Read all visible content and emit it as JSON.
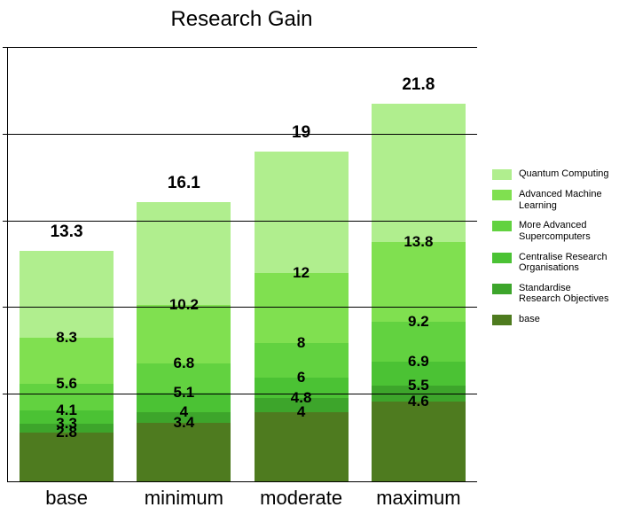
{
  "chart": {
    "type": "stacked-bar",
    "title": "Research Gain",
    "title_fontsize": 24,
    "background_color": "#ffffff",
    "grid_color": "#000000",
    "axis_color": "#000000",
    "ylim": [
      0,
      25
    ],
    "gridlines_y": [
      5,
      10,
      15,
      20,
      25
    ],
    "category_fontsize": 22,
    "segment_label_fontsize": 17,
    "total_label_fontsize": 19,
    "legend_fontsize": 11,
    "categories": [
      "base",
      "minimum",
      "moderate",
      "maximum"
    ],
    "series": [
      {
        "name": "Quantum Computing",
        "color": "#b0ee8e"
      },
      {
        "name": "Advanced Machine Learning",
        "color": "#80e050"
      },
      {
        "name": "More Advanced Supercomputers",
        "color": "#62d240"
      },
      {
        "name": "Centralise Research Organisations",
        "color": "#4bc234"
      },
      {
        "name": "Standardise Research Objectives",
        "color": "#3da52b"
      },
      {
        "name": "base",
        "color": "#4e7b1f"
      }
    ],
    "bars": [
      {
        "category": "base",
        "total": 13.3,
        "total_label": "13.3",
        "segments_top_to_bottom": [
          {
            "top": 13.3,
            "label": "",
            "color": "#b0ee8e"
          },
          {
            "top": 8.3,
            "label": "8.3",
            "color": "#80e050"
          },
          {
            "top": 5.6,
            "label": "5.6",
            "color": "#62d240"
          },
          {
            "top": 4.1,
            "label": "4.1",
            "color": "#4bc234"
          },
          {
            "top": 3.3,
            "label": "3.3",
            "color": "#3da52b"
          },
          {
            "top": 2.8,
            "label": "2.8",
            "color": "#4e7b1f"
          }
        ]
      },
      {
        "category": "minimum",
        "total": 16.1,
        "total_label": "16.1",
        "segments_top_to_bottom": [
          {
            "top": 16.1,
            "label": "",
            "color": "#b0ee8e"
          },
          {
            "top": 10.2,
            "label": "10.2",
            "color": "#80e050"
          },
          {
            "top": 6.8,
            "label": "6.8",
            "color": "#62d240"
          },
          {
            "top": 5.1,
            "label": "5.1",
            "color": "#4bc234"
          },
          {
            "top": 4.0,
            "label": "4",
            "color": "#3da52b"
          },
          {
            "top": 3.4,
            "label": "3.4",
            "color": "#4e7b1f"
          }
        ]
      },
      {
        "category": "moderate",
        "total": 19,
        "total_label": "19",
        "segments_top_to_bottom": [
          {
            "top": 19,
            "label": "",
            "color": "#b0ee8e"
          },
          {
            "top": 12,
            "label": "12",
            "color": "#80e050"
          },
          {
            "top": 8,
            "label": "8",
            "color": "#62d240"
          },
          {
            "top": 6,
            "label": "6",
            "color": "#4bc234"
          },
          {
            "top": 4.8,
            "label": "4.8",
            "color": "#3da52b"
          },
          {
            "top": 4.0,
            "label": "4",
            "color": "#4e7b1f"
          }
        ]
      },
      {
        "category": "maximum",
        "total": 21.8,
        "total_label": "21.8",
        "segments_top_to_bottom": [
          {
            "top": 21.8,
            "label": "",
            "color": "#b0ee8e"
          },
          {
            "top": 13.8,
            "label": "13.8",
            "color": "#80e050"
          },
          {
            "top": 9.2,
            "label": "9.2",
            "color": "#62d240"
          },
          {
            "top": 6.9,
            "label": "6.9",
            "color": "#4bc234"
          },
          {
            "top": 5.5,
            "label": "5.5",
            "color": "#3da52b"
          },
          {
            "top": 4.6,
            "label": "4.6",
            "color": "#4e7b1f"
          }
        ]
      }
    ]
  }
}
